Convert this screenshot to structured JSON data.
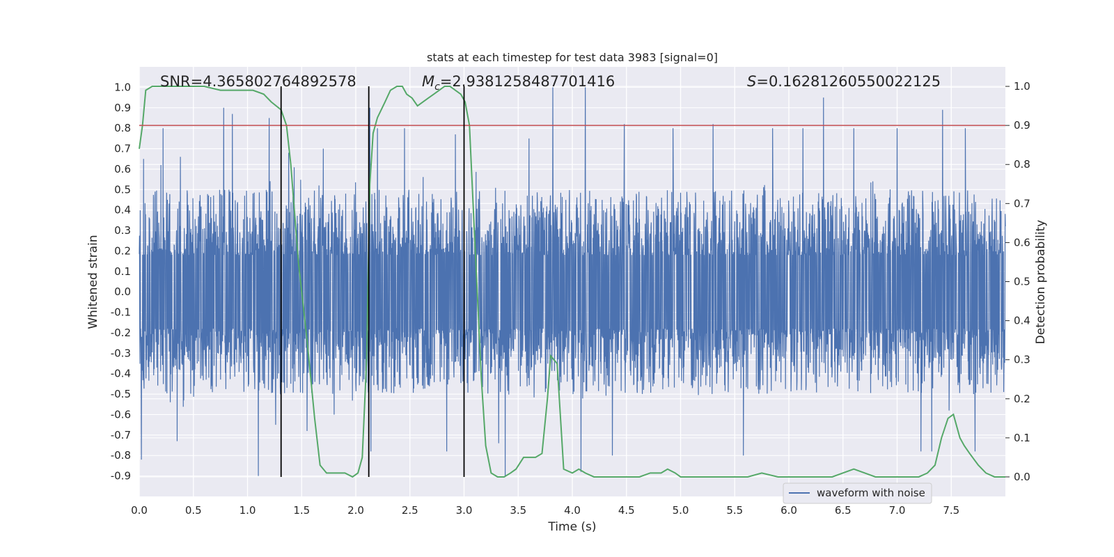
{
  "chart_data": {
    "type": "line",
    "title": "stats at each timestep for test data 3983 [signal=0]",
    "xlabel": "Time (s)",
    "ylabel_left": "Whitened strain",
    "ylabel_right": "Detection probability",
    "xlim": [
      0.0,
      8.0
    ],
    "ylim_left": [
      -1.0,
      1.1
    ],
    "ylim_right": [
      -0.05,
      1.05
    ],
    "x_ticks": [
      "0.0",
      "0.5",
      "1.0",
      "1.5",
      "2.0",
      "2.5",
      "3.0",
      "3.5",
      "4.0",
      "4.5",
      "5.0",
      "5.5",
      "6.0",
      "6.5",
      "7.0",
      "7.5"
    ],
    "y_left_ticks": [
      "-0.9",
      "-0.8",
      "-0.7",
      "-0.6",
      "-0.5",
      "-0.4",
      "-0.3",
      "-0.2",
      "-0.1",
      "0.0",
      "0.1",
      "0.2",
      "0.3",
      "0.4",
      "0.5",
      "0.6",
      "0.7",
      "0.8",
      "0.9",
      "1.0"
    ],
    "y_right_ticks": [
      "0.0",
      "0.1",
      "0.2",
      "0.3",
      "0.4",
      "0.5",
      "0.6",
      "0.7",
      "0.8",
      "0.9",
      "1.0"
    ],
    "grid": true,
    "legend_position": "lower-right",
    "annotations": {
      "snr": "SNR=4.365802764892578",
      "mc_symbol": "M",
      "mc_sub": "c",
      "mc_value": "=2.9381258487701416",
      "s_symbol": "S",
      "s_value": "=0.16281260550022125"
    },
    "colors": {
      "strain": "#4c72b0",
      "probability": "#55a868",
      "threshold": "#c44e52",
      "vlines": "#000000",
      "background": "#eaeaf2",
      "grid": "#ffffff"
    },
    "threshold_right": 0.9,
    "vlines_x": [
      1.31,
      2.12,
      3.0
    ],
    "series": [
      {
        "name": "waveform with noise",
        "axis": "left",
        "peaks": [
          [
            0.02,
            -0.82
          ],
          [
            0.04,
            0.65
          ],
          [
            0.2,
            0.62
          ],
          [
            0.22,
            0.8
          ],
          [
            0.35,
            -0.73
          ],
          [
            0.38,
            0.66
          ],
          [
            0.78,
            0.9
          ],
          [
            0.86,
            0.87
          ],
          [
            1.1,
            -0.9
          ],
          [
            1.2,
            0.85
          ],
          [
            1.26,
            -0.65
          ],
          [
            1.38,
            0.68
          ],
          [
            1.55,
            -0.68
          ],
          [
            1.7,
            0.7
          ],
          [
            1.8,
            -0.6
          ],
          [
            2.13,
            0.9
          ],
          [
            2.14,
            -0.78
          ],
          [
            2.2,
            0.8
          ],
          [
            2.45,
            0.8
          ],
          [
            2.92,
            0.77
          ],
          [
            2.84,
            -0.78
          ],
          [
            3.32,
            -0.74
          ],
          [
            3.38,
            -0.9
          ],
          [
            3.6,
            0.75
          ],
          [
            3.82,
            1.0
          ],
          [
            4.08,
            -0.88
          ],
          [
            4.12,
            1.0
          ],
          [
            4.37,
            -0.8
          ],
          [
            4.48,
            0.82
          ],
          [
            4.93,
            0.8
          ],
          [
            5.3,
            0.82
          ],
          [
            5.58,
            -0.8
          ],
          [
            5.85,
            0.8
          ],
          [
            6.13,
            0.8
          ],
          [
            6.32,
            0.95
          ],
          [
            6.6,
            0.8
          ],
          [
            7.0,
            0.8
          ],
          [
            7.22,
            -0.78
          ],
          [
            7.32,
            -0.78
          ],
          [
            7.42,
            0.89
          ],
          [
            7.48,
            -0.58
          ],
          [
            7.63,
            0.8
          ],
          [
            7.72,
            -0.78
          ]
        ]
      },
      {
        "name": "",
        "axis": "right",
        "x": [
          0.0,
          0.03,
          0.06,
          0.12,
          0.25,
          0.4,
          0.6,
          0.75,
          0.9,
          1.05,
          1.15,
          1.22,
          1.31,
          1.36,
          1.4,
          1.47,
          1.55,
          1.62,
          1.67,
          1.73,
          1.8,
          1.9,
          1.97,
          2.02,
          2.06,
          2.1,
          2.13,
          2.16,
          2.2,
          2.27,
          2.32,
          2.38,
          2.43,
          2.47,
          2.52,
          2.57,
          2.62,
          2.67,
          2.72,
          2.77,
          2.82,
          2.87,
          2.92,
          2.97,
          3.01,
          3.05,
          3.1,
          3.16,
          3.2,
          3.25,
          3.31,
          3.37,
          3.43,
          3.48,
          3.55,
          3.62,
          3.66,
          3.72,
          3.77,
          3.8,
          3.83,
          3.86,
          3.92,
          4.0,
          4.06,
          4.12,
          4.2,
          4.3,
          4.4,
          4.5,
          4.62,
          4.72,
          4.82,
          4.88,
          4.95,
          5.0,
          5.1,
          5.2,
          5.35,
          5.5,
          5.62,
          5.75,
          5.9,
          6.0,
          6.1,
          6.2,
          6.3,
          6.4,
          6.5,
          6.6,
          6.7,
          6.8,
          7.0,
          7.2,
          7.28,
          7.35,
          7.41,
          7.47,
          7.52,
          7.58,
          7.62,
          7.67,
          7.75,
          7.82,
          7.9,
          7.96,
          8.0
        ],
        "values": [
          0.84,
          0.9,
          0.99,
          1.0,
          1.0,
          1.0,
          1.0,
          0.99,
          0.99,
          0.99,
          0.98,
          0.96,
          0.94,
          0.9,
          0.8,
          0.55,
          0.35,
          0.15,
          0.03,
          0.01,
          0.01,
          0.01,
          0.0,
          0.01,
          0.05,
          0.3,
          0.75,
          0.88,
          0.92,
          0.96,
          0.99,
          1.0,
          1.0,
          0.98,
          0.97,
          0.95,
          0.96,
          0.97,
          0.98,
          0.99,
          1.0,
          1.0,
          0.99,
          0.98,
          0.96,
          0.9,
          0.6,
          0.25,
          0.08,
          0.01,
          0.0,
          0.0,
          0.01,
          0.02,
          0.05,
          0.05,
          0.05,
          0.06,
          0.2,
          0.31,
          0.3,
          0.29,
          0.02,
          0.01,
          0.02,
          0.01,
          0.0,
          0.0,
          0.0,
          0.0,
          0.0,
          0.01,
          0.01,
          0.02,
          0.01,
          0.0,
          0.0,
          0.0,
          0.0,
          0.0,
          0.0,
          0.01,
          0.0,
          0.0,
          0.0,
          0.0,
          0.0,
          0.0,
          0.01,
          0.02,
          0.01,
          0.0,
          0.0,
          0.0,
          0.01,
          0.03,
          0.1,
          0.15,
          0.16,
          0.1,
          0.08,
          0.06,
          0.03,
          0.01,
          0.0,
          0.0,
          0.0
        ]
      }
    ]
  }
}
